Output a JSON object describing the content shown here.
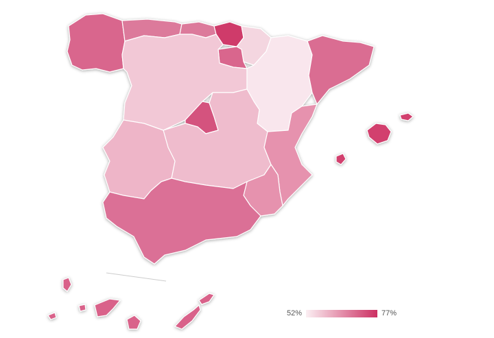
{
  "legend": {
    "min_label": "52%",
    "max_label": "77%",
    "min_color": "#fbeff3",
    "max_color": "#cc2f62"
  },
  "region_fills": {
    "galicia": "#d9668d",
    "asturias": "#dc7a9b",
    "cantabria": "#dc7a9b",
    "basque_country": "#cf3b6b",
    "navarra": "#f4d6e0",
    "la_rioja": "#d9668d",
    "castilla_y_leon": "#f2c8d6",
    "aragon": "#f9e6ed",
    "catalonia": "#da6d92",
    "madrid": "#d4527e",
    "castilla_la_mancha": "#efbccd",
    "extremadura": "#eeb5c8",
    "valencia": "#e692ae",
    "murcia": "#e692ae",
    "andalucia": "#db7096",
    "balearic_islands": "#d23f6e",
    "canary_islands": "#d9628a"
  }
}
